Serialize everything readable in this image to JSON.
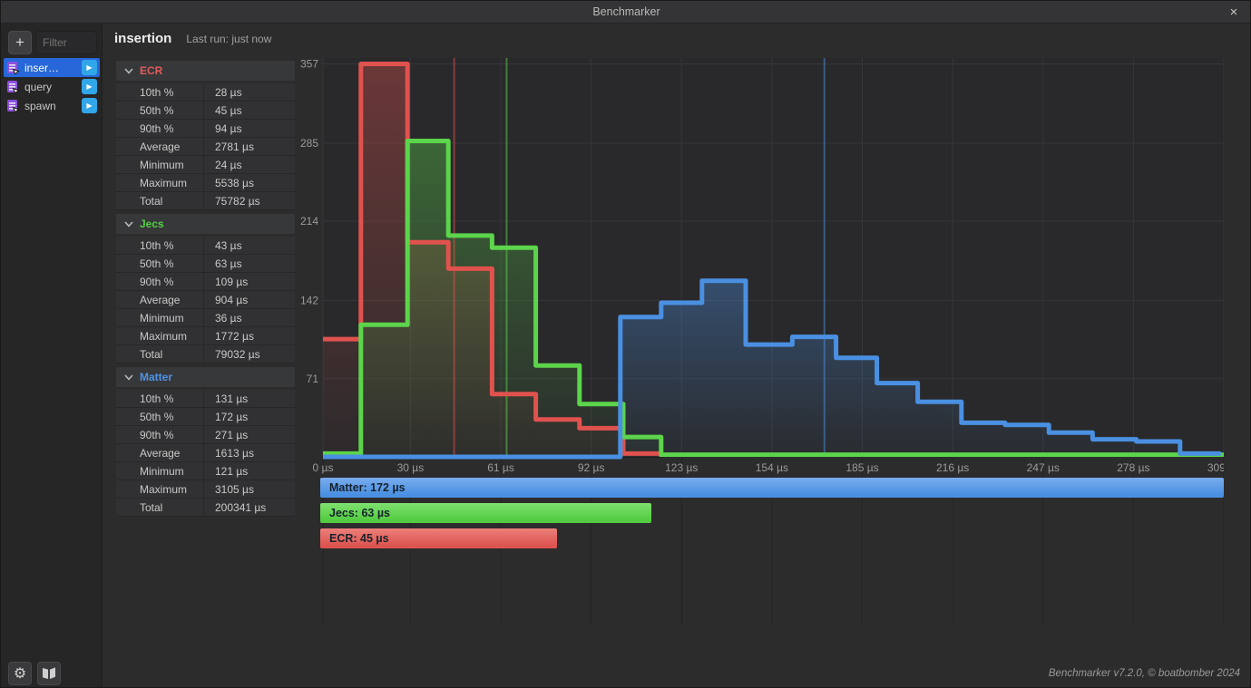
{
  "titlebar": {
    "title": "Benchmarker"
  },
  "icons": {
    "add": "+",
    "play": "▶",
    "close": "×",
    "gear": "⚙"
  },
  "sidebar": {
    "filter_placeholder": "Filter",
    "benchmarks": [
      {
        "label": "inser…",
        "selected": true
      },
      {
        "label": "query",
        "selected": false
      },
      {
        "label": "spawn",
        "selected": false
      }
    ]
  },
  "header": {
    "title": "insertion",
    "last_run": "Last run: just now"
  },
  "stats_sections": [
    {
      "name": "ECR",
      "color": "#e25c5c",
      "rows": [
        [
          "10th %",
          "28 µs"
        ],
        [
          "50th %",
          "45 µs"
        ],
        [
          "90th %",
          "94 µs"
        ],
        [
          "Average",
          "2781 µs"
        ],
        [
          "Minimum",
          "24 µs"
        ],
        [
          "Maximum",
          "5538 µs"
        ],
        [
          "Total",
          "75782 µs"
        ]
      ]
    },
    {
      "name": "Jecs",
      "color": "#53cf43",
      "rows": [
        [
          "10th %",
          "43 µs"
        ],
        [
          "50th %",
          "63 µs"
        ],
        [
          "90th %",
          "109 µs"
        ],
        [
          "Average",
          "904 µs"
        ],
        [
          "Minimum",
          "36 µs"
        ],
        [
          "Maximum",
          "1772 µs"
        ],
        [
          "Total",
          "79032 µs"
        ]
      ]
    },
    {
      "name": "Matter",
      "color": "#4e94e8",
      "rows": [
        [
          "10th %",
          "131 µs"
        ],
        [
          "50th %",
          "172 µs"
        ],
        [
          "90th %",
          "271 µs"
        ],
        [
          "Average",
          "1613 µs"
        ],
        [
          "Minimum",
          "121 µs"
        ],
        [
          "Maximum",
          "3105 µs"
        ],
        [
          "Total",
          "200341 µs"
        ]
      ]
    }
  ],
  "chart_data": {
    "type": "step-histogram",
    "x_unit": "µs",
    "x_ticks": [
      0,
      30,
      61,
      92,
      123,
      154,
      185,
      216,
      247,
      278,
      309
    ],
    "y_ticks": [
      71,
      142,
      214,
      285,
      357
    ],
    "x_range": [
      0,
      309
    ],
    "y_range": [
      0,
      357
    ],
    "plot": {
      "bg": "#29292b",
      "grid_color": "#36363a",
      "grid_below_color": "#252527",
      "axis_color": "#202022",
      "tick_color": "#9b9b9b",
      "bar_label_color": "#16222c"
    },
    "series": [
      {
        "name": "ECR",
        "color": "#e0524e",
        "median_us": 45,
        "edges": [
          0,
          13,
          29,
          43,
          58,
          73,
          88,
          103,
          116
        ],
        "counts": [
          107,
          357,
          195,
          171,
          57,
          34,
          26,
          3
        ]
      },
      {
        "name": "Jecs",
        "color": "#5cd44b",
        "median_us": 63,
        "edges": [
          0,
          13,
          29,
          43,
          58,
          73,
          88,
          103,
          116,
          309
        ],
        "counts": [
          3,
          120,
          287,
          201,
          190,
          83,
          48,
          18,
          2
        ]
      },
      {
        "name": "Matter",
        "color": "#4a90e2",
        "median_us": 172,
        "edges": [
          0,
          102,
          116,
          130,
          145,
          161,
          176,
          190,
          204,
          219,
          234,
          249,
          264,
          279,
          294,
          308
        ],
        "counts": [
          0,
          127,
          140,
          160,
          102,
          109,
          90,
          67,
          50,
          31,
          29,
          22,
          16,
          14,
          3
        ]
      }
    ],
    "median_bars": [
      {
        "name": "Matter",
        "label": "Matter: 172 µs",
        "value_us": 172,
        "fill": "#4a90e2",
        "fill_light": "#79aced"
      },
      {
        "name": "Jecs",
        "label": "Jecs: 63 µs",
        "value_us": 63,
        "fill": "#53cc42",
        "fill_light": "#7fe06f"
      },
      {
        "name": "ECR",
        "label": "ECR: 45 µs",
        "value_us": 45,
        "fill": "#dd5450",
        "fill_light": "#ec807a"
      }
    ]
  },
  "footer": {
    "version": "Benchmarker v7.2.0, © boatbomber 2024"
  }
}
